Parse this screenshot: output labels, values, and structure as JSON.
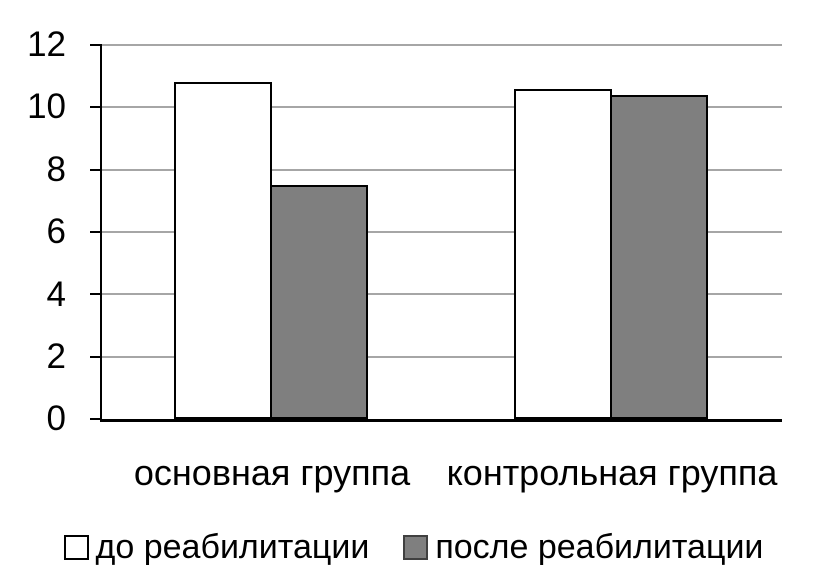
{
  "chart_data": {
    "type": "bar",
    "categories": [
      "основная группа",
      "контрольная группа"
    ],
    "series": [
      {
        "name": "до реабилитации",
        "values": [
          10.8,
          10.6
        ],
        "fill": "#FFFFFF",
        "border": "#000000"
      },
      {
        "name": "после реабилитации",
        "values": [
          7.5,
          10.4
        ],
        "fill": "#7F7F7F",
        "border": "#000000"
      }
    ],
    "title": "",
    "xlabel": "",
    "ylabel": "",
    "ylim": [
      0,
      12
    ],
    "yticks": [
      0,
      2,
      4,
      6,
      8,
      10,
      12
    ],
    "grid": true,
    "gridline_color": "#A6A6A6",
    "axis_color": "#000000",
    "background": "#FFFFFF",
    "legend_position": "bottom"
  }
}
